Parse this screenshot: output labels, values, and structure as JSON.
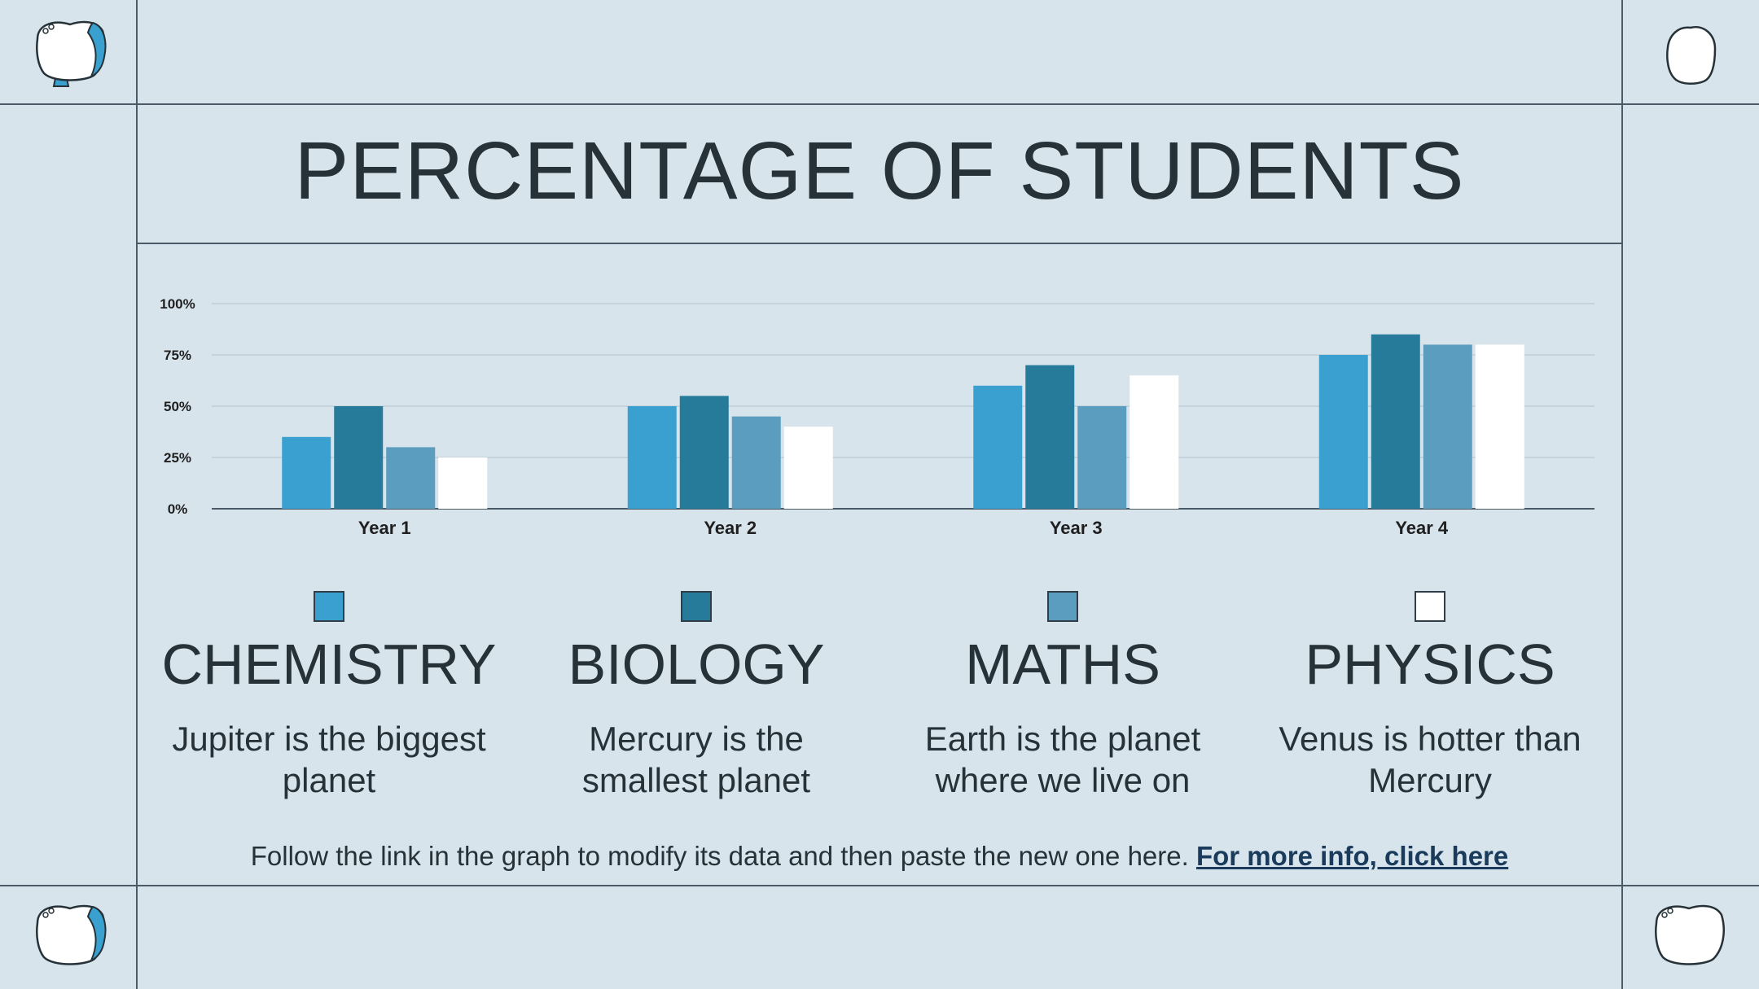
{
  "title": "PERCENTAGE OF STUDENTS",
  "chart_data": {
    "type": "bar",
    "categories": [
      "Year 1",
      "Year 2",
      "Year 3",
      "Year 4"
    ],
    "series": [
      {
        "name": "CHEMISTRY",
        "color": "#3aa0cf",
        "values": [
          35,
          50,
          60,
          75
        ]
      },
      {
        "name": "BIOLOGY",
        "color": "#267a9a",
        "values": [
          50,
          55,
          70,
          85
        ]
      },
      {
        "name": "MATHS",
        "color": "#5b9dbf",
        "values": [
          30,
          45,
          50,
          80
        ]
      },
      {
        "name": "PHYSICS",
        "color": "#ffffff",
        "values": [
          25,
          40,
          65,
          80
        ]
      }
    ],
    "y_ticks": [
      "0%",
      "25%",
      "50%",
      "75%",
      "100%"
    ],
    "ylim": [
      0,
      100
    ],
    "grid": true,
    "legend": "bottom"
  },
  "legend": [
    {
      "title": "CHEMISTRY",
      "desc_line1": "Jupiter is the biggest",
      "desc_line2": "planet",
      "color": "#3aa0cf"
    },
    {
      "title": "BIOLOGY",
      "desc_line1": "Mercury is the",
      "desc_line2": "smallest planet",
      "color": "#267a9a"
    },
    {
      "title": "MATHS",
      "desc_line1": "Earth is the planet",
      "desc_line2": "where we live on",
      "color": "#5b9dbf"
    },
    {
      "title": "PHYSICS",
      "desc_line1": "Venus is hotter than",
      "desc_line2": "Mercury",
      "color": "#ffffff"
    }
  ],
  "footer": {
    "text": "Follow the link in the graph to modify its data and then paste the new one here.",
    "link": "For more info, click here"
  },
  "colors": {
    "background": "#d8e4ec",
    "frame": "#4a5a66",
    "text": "#263238",
    "link": "#1a3b5c"
  },
  "icons": [
    "tooth-icon",
    "tooth-outline-icon"
  ]
}
